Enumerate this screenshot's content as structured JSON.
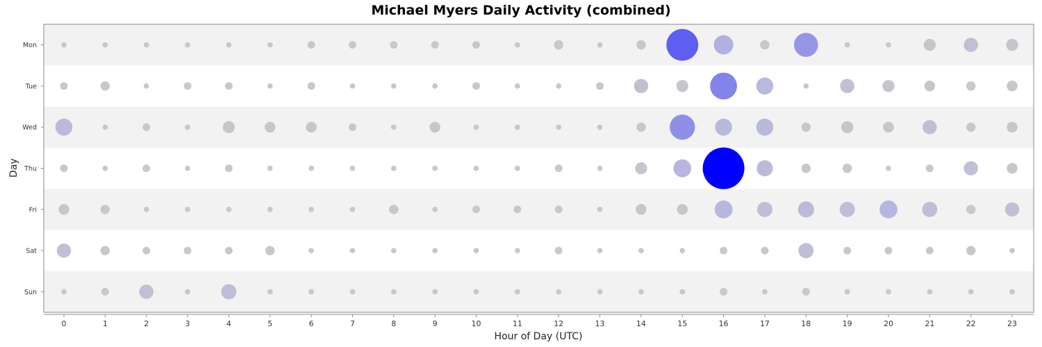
{
  "chart_data": {
    "type": "scatter",
    "subtype": "bubble-punchcard",
    "title": "Michael Myers Daily Activity (combined)",
    "xlabel": "Hour of Day (UTC)",
    "ylabel": "Day",
    "x": [
      0,
      1,
      2,
      3,
      4,
      5,
      6,
      7,
      8,
      9,
      10,
      11,
      12,
      13,
      14,
      15,
      16,
      17,
      18,
      19,
      20,
      21,
      22,
      23
    ],
    "y": [
      "Mon",
      "Tue",
      "Wed",
      "Thu",
      "Fri",
      "Sat",
      "Sun"
    ],
    "xlim": [
      -0.5,
      23.5
    ],
    "grid": false,
    "legend": "none",
    "colors": {
      "low": "#c8c8c8",
      "mid": "#b4b4e2",
      "high": "#0000ff",
      "band_odd": "#f2f2f2",
      "band_even": "#ffffff"
    },
    "values": [
      [
        1,
        1,
        1,
        1,
        1,
        1,
        2,
        2,
        2,
        2,
        2,
        1,
        3,
        1,
        3,
        35,
        13,
        3,
        20,
        1,
        1,
        5,
        7,
        5
      ],
      [
        2,
        3,
        1,
        2,
        2,
        1,
        2,
        1,
        1,
        1,
        2,
        1,
        1,
        2,
        7,
        5,
        25,
        10,
        1,
        7,
        5,
        4,
        3,
        4
      ],
      [
        10,
        1,
        2,
        1,
        5,
        4,
        4,
        2,
        1,
        4,
        1,
        1,
        1,
        1,
        3,
        22,
        10,
        10,
        3,
        5,
        4,
        7,
        3,
        4
      ],
      [
        2,
        1,
        2,
        1,
        2,
        1,
        1,
        1,
        1,
        1,
        1,
        1,
        2,
        1,
        5,
        11,
        60,
        9,
        3,
        3,
        1,
        2,
        7,
        4
      ],
      [
        4,
        3,
        1,
        1,
        1,
        1,
        1,
        1,
        3,
        1,
        2,
        2,
        2,
        1,
        4,
        4,
        11,
        8,
        9,
        8,
        11,
        8,
        3,
        7
      ],
      [
        7,
        3,
        2,
        2,
        2,
        3,
        1,
        1,
        1,
        1,
        1,
        1,
        2,
        1,
        1,
        1,
        2,
        2,
        8,
        2,
        2,
        2,
        3,
        1
      ],
      [
        1,
        2,
        7,
        1,
        8,
        1,
        1,
        1,
        1,
        1,
        1,
        1,
        1,
        1,
        1,
        1,
        2,
        1,
        2,
        1,
        1,
        1,
        1,
        1
      ]
    ]
  }
}
